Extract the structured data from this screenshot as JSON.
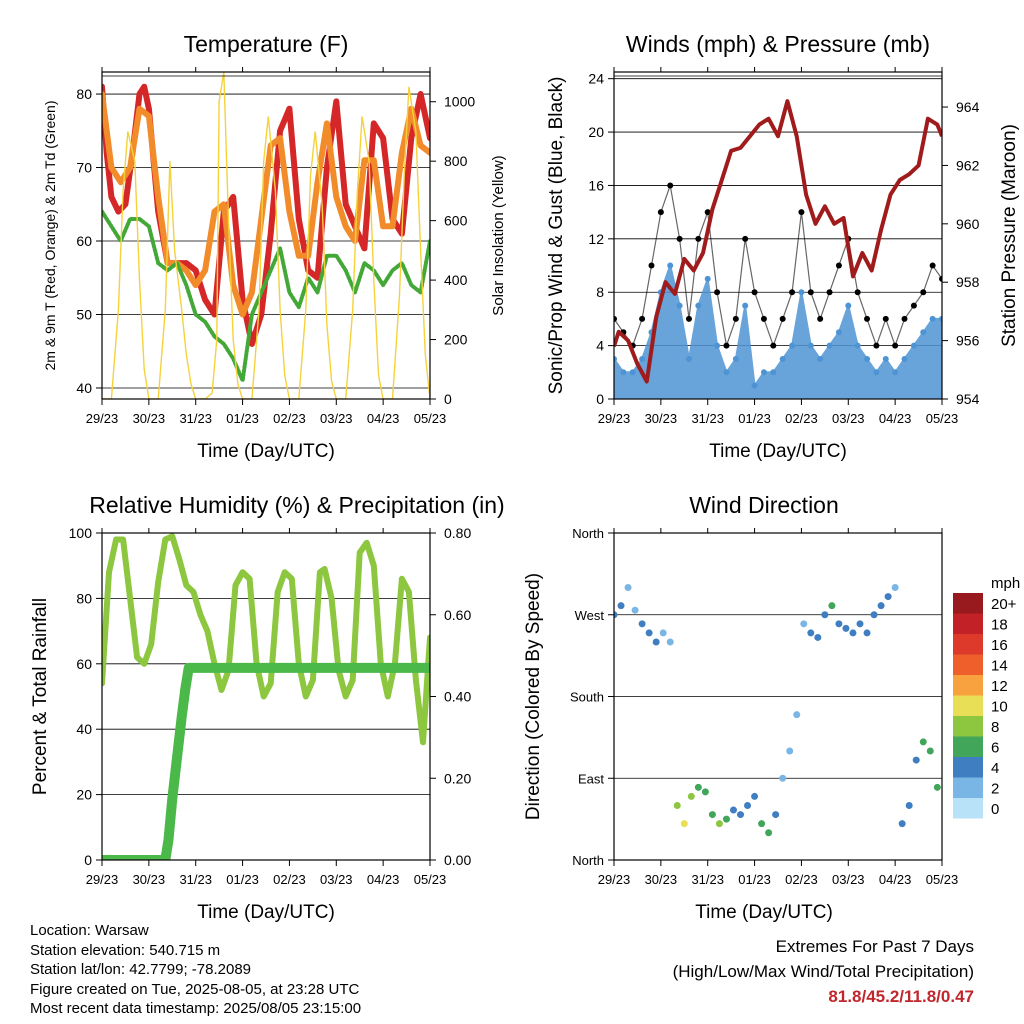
{
  "chart_data": [
    {
      "type": "line",
      "title": "Temperature (F)",
      "xlabel": "Time (Day/UTC)",
      "ylabel": "2m & 9m T (Red, Orange) & 2m Td (Green)",
      "y2label": "Solar Insolation (Yellow)",
      "xticks": [
        "29/23",
        "30/23",
        "31/23",
        "01/23",
        "02/23",
        "03/23",
        "04/23",
        "05/23"
      ],
      "ylim": [
        38.5,
        83
      ],
      "yticks": [
        40,
        50,
        60,
        70,
        80
      ],
      "y2lim": [
        0,
        1100
      ],
      "y2ticks": [
        0,
        200,
        400,
        600,
        800,
        1000
      ],
      "grid": true,
      "series": [
        {
          "name": "2m T",
          "color": "#d62728",
          "x": [
            0,
            0.1,
            0.2,
            0.35,
            0.5,
            0.65,
            0.8,
            0.9,
            1.0,
            1.2,
            1.4,
            1.6,
            1.8,
            2.0,
            2.2,
            2.4,
            2.6,
            2.8,
            3.0,
            3.2,
            3.4,
            3.6,
            3.8,
            4.0,
            4.2,
            4.4,
            4.6,
            4.8,
            5.0,
            5.2,
            5.4,
            5.6,
            5.8,
            6.0,
            6.2,
            6.4,
            6.6,
            6.8,
            7.0
          ],
          "values": [
            81,
            72,
            66,
            64,
            65,
            72,
            80,
            81,
            78,
            64,
            57,
            57,
            57,
            56,
            52,
            50,
            64,
            66,
            52,
            46,
            50,
            61,
            75,
            78,
            63,
            56,
            55,
            70,
            79,
            65,
            62,
            59,
            76,
            74,
            63,
            61,
            74,
            80,
            74
          ]
        },
        {
          "name": "9m T",
          "color": "#f28c2b",
          "x": [
            0,
            0.2,
            0.4,
            0.6,
            0.8,
            1.0,
            1.2,
            1.4,
            1.6,
            1.8,
            2.0,
            2.2,
            2.4,
            2.6,
            2.8,
            3.0,
            3.2,
            3.4,
            3.6,
            3.8,
            4.0,
            4.2,
            4.4,
            4.6,
            4.8,
            5.0,
            5.2,
            5.4,
            5.6,
            5.8,
            6.0,
            6.2,
            6.4,
            6.6,
            6.8,
            7.0
          ],
          "values": [
            80,
            70,
            68,
            70,
            78,
            77,
            66,
            57,
            57,
            56,
            54,
            56,
            64,
            65,
            54,
            50,
            53,
            63,
            73,
            74,
            64,
            58,
            58,
            68,
            76,
            66,
            62,
            60,
            71,
            71,
            62,
            62,
            72,
            78,
            73,
            72
          ]
        },
        {
          "name": "2m Td",
          "color": "#43a838",
          "x": [
            0,
            0.2,
            0.4,
            0.6,
            0.8,
            1.0,
            1.2,
            1.4,
            1.6,
            1.8,
            2.0,
            2.2,
            2.4,
            2.6,
            2.8,
            3.0,
            3.2,
            3.4,
            3.6,
            3.8,
            4.0,
            4.2,
            4.4,
            4.6,
            4.8,
            5.0,
            5.2,
            5.4,
            5.6,
            5.8,
            6.0,
            6.2,
            6.4,
            6.6,
            6.8,
            7.0
          ],
          "values": [
            64,
            62,
            60,
            63,
            63,
            62,
            57,
            56,
            57,
            54,
            50,
            49,
            47,
            46,
            44,
            41,
            50,
            53,
            56,
            59,
            53,
            51,
            55,
            53,
            58,
            58,
            56,
            53,
            57,
            56,
            54,
            56,
            57,
            54,
            53,
            60
          ]
        },
        {
          "name": "Solar Insolation",
          "color": "#f5d23c",
          "axis": "y2",
          "x": [
            0,
            0.2,
            0.35,
            0.45,
            0.55,
            0.7,
            0.8,
            0.9,
            1.0,
            1.2,
            1.35,
            1.45,
            1.55,
            1.7,
            1.8,
            1.9,
            2.0,
            2.2,
            2.35,
            2.45,
            2.5,
            2.6,
            2.7,
            2.8,
            2.9,
            3.0,
            3.2,
            3.35,
            3.45,
            3.55,
            3.7,
            3.8,
            3.9,
            4.0,
            4.2,
            4.35,
            4.45,
            4.55,
            4.7,
            4.8,
            4.9,
            5.0,
            5.2,
            5.35,
            5.45,
            5.55,
            5.7,
            5.8,
            5.9,
            6.0,
            6.2,
            6.35,
            6.45,
            6.55,
            6.7,
            6.8,
            6.9,
            7.0
          ],
          "values": [
            0,
            0,
            300,
            700,
            900,
            800,
            400,
            100,
            0,
            0,
            300,
            800,
            500,
            300,
            150,
            50,
            0,
            0,
            20,
            200,
            1000,
            1100,
            600,
            200,
            50,
            0,
            0,
            300,
            800,
            950,
            700,
            300,
            80,
            0,
            0,
            300,
            750,
            900,
            650,
            250,
            60,
            0,
            0,
            300,
            700,
            950,
            800,
            400,
            80,
            0,
            0,
            350,
            750,
            1050,
            900,
            500,
            150,
            0
          ]
        }
      ]
    },
    {
      "type": "scatter",
      "title": "Winds (mph) & Pressure (mb)",
      "xlabel": "Time (Day/UTC)",
      "ylabel": "Sonic/Prop Wind & Gust (Blue, Black)",
      "y2label": "Station Pressure (Maroon)",
      "xticks": [
        "29/23",
        "30/23",
        "31/23",
        "01/23",
        "02/23",
        "03/23",
        "04/23",
        "05/23"
      ],
      "ylim": [
        0,
        24.5
      ],
      "yticks": [
        0,
        4,
        8,
        12,
        16,
        20,
        24
      ],
      "y2lim": [
        954,
        965.2
      ],
      "y2ticks": [
        954,
        956,
        958,
        960,
        962,
        964
      ],
      "grid": true,
      "series": [
        {
          "name": "Gust",
          "color": "#000000",
          "x": [
            0,
            0.2,
            0.4,
            0.6,
            0.8,
            1.0,
            1.2,
            1.4,
            1.6,
            1.8,
            2.0,
            2.2,
            2.4,
            2.6,
            2.8,
            3.0,
            3.2,
            3.4,
            3.6,
            3.8,
            4.0,
            4.2,
            4.4,
            4.6,
            4.8,
            5.0,
            5.2,
            5.4,
            5.6,
            5.8,
            6.0,
            6.2,
            6.4,
            6.6,
            6.8,
            7.0
          ],
          "values": [
            6,
            5,
            4,
            6,
            10,
            14,
            16,
            12,
            6,
            12,
            14,
            8,
            4,
            6,
            12,
            8,
            6,
            4,
            6,
            8,
            14,
            8,
            6,
            8,
            10,
            12,
            8,
            6,
            4,
            6,
            4,
            6,
            7,
            8,
            10,
            9
          ]
        },
        {
          "name": "Wind",
          "color": "#4e94d4",
          "x": [
            0,
            0.2,
            0.4,
            0.6,
            0.8,
            1.0,
            1.2,
            1.4,
            1.6,
            1.8,
            2.0,
            2.2,
            2.4,
            2.6,
            2.8,
            3.0,
            3.2,
            3.4,
            3.6,
            3.8,
            4.0,
            4.2,
            4.4,
            4.6,
            4.8,
            5.0,
            5.2,
            5.4,
            5.6,
            5.8,
            6.0,
            6.2,
            6.4,
            6.6,
            6.8,
            7.0
          ],
          "values": [
            3,
            2,
            2,
            3,
            5,
            8,
            10,
            7,
            3,
            7,
            9,
            4,
            2,
            3,
            7,
            1,
            2,
            2,
            3,
            4,
            8,
            4,
            3,
            4,
            5,
            7,
            4,
            3,
            2,
            3,
            2,
            3,
            4,
            5,
            6,
            6
          ]
        },
        {
          "name": "Station Pressure",
          "color": "#a01c1c",
          "axis": "y2",
          "x": [
            0,
            0.1,
            0.3,
            0.5,
            0.7,
            0.9,
            1.1,
            1.3,
            1.5,
            1.7,
            1.9,
            2.1,
            2.3,
            2.5,
            2.7,
            2.9,
            3.1,
            3.3,
            3.5,
            3.7,
            3.9,
            4.1,
            4.3,
            4.5,
            4.7,
            4.9,
            5.1,
            5.3,
            5.5,
            5.7,
            5.9,
            6.1,
            6.3,
            6.5,
            6.7,
            6.9,
            7.0
          ],
          "values": [
            955.8,
            956.3,
            956,
            955.2,
            954.6,
            956.8,
            958,
            957.6,
            958.8,
            958.4,
            959,
            960.5,
            961.5,
            962.5,
            962.6,
            963,
            963.4,
            963.6,
            963,
            964.2,
            963,
            961,
            960,
            960.6,
            960,
            960.2,
            958.2,
            959,
            958.4,
            959.8,
            961,
            961.5,
            961.7,
            962,
            963.6,
            963.4,
            963
          ]
        }
      ]
    },
    {
      "type": "line",
      "title": "Relative Humidity (%) & Precipitation (in)",
      "xlabel": "Time (Day/UTC)",
      "ylabel": "Percent & Total Rainfall",
      "xticks": [
        "29/23",
        "30/23",
        "31/23",
        "01/23",
        "02/23",
        "03/23",
        "04/23",
        "05/23"
      ],
      "ylim": [
        0,
        100
      ],
      "yticks": [
        0,
        20,
        40,
        60,
        80,
        100
      ],
      "y2lim": [
        0,
        0.8
      ],
      "y2ticks": [
        "0.00",
        "0.20",
        "0.40",
        "0.60",
        "0.80"
      ],
      "grid": true,
      "series": [
        {
          "name": "Relative Humidity",
          "color": "#8dc63f",
          "x": [
            0,
            0.15,
            0.3,
            0.45,
            0.6,
            0.75,
            0.9,
            1.05,
            1.2,
            1.35,
            1.5,
            1.65,
            1.8,
            1.95,
            2.1,
            2.25,
            2.4,
            2.55,
            2.7,
            2.85,
            3.0,
            3.15,
            3.3,
            3.45,
            3.6,
            3.75,
            3.9,
            4.05,
            4.2,
            4.35,
            4.5,
            4.65,
            4.75,
            4.9,
            5.05,
            5.2,
            5.35,
            5.5,
            5.65,
            5.8,
            5.95,
            6.1,
            6.25,
            6.4,
            6.55,
            6.7,
            6.85,
            7.0
          ],
          "values": [
            54,
            88,
            98,
            98,
            80,
            62,
            60,
            66,
            85,
            98,
            99,
            92,
            84,
            82,
            75,
            70,
            60,
            52,
            58,
            84,
            88,
            86,
            60,
            50,
            54,
            82,
            88,
            86,
            60,
            50,
            55,
            88,
            89,
            80,
            58,
            50,
            55,
            94,
            97,
            90,
            60,
            50,
            60,
            86,
            82,
            55,
            36,
            68
          ]
        },
        {
          "name": "Total Precipitation",
          "color": "#4bb84a",
          "axis": "y2",
          "x": [
            0,
            1.0,
            1.35,
            1.42,
            1.5,
            1.6,
            1.7,
            1.78,
            1.85,
            2.0,
            3.0,
            4.0,
            5.0,
            6.0,
            7.0
          ],
          "values": [
            0,
            0,
            0,
            0.05,
            0.15,
            0.25,
            0.35,
            0.42,
            0.47,
            0.47,
            0.47,
            0.47,
            0.47,
            0.47,
            0.47
          ]
        }
      ]
    },
    {
      "type": "scatter",
      "title": "Wind Direction",
      "xlabel": "Time (Day/UTC)",
      "ylabel": "Direction (Colored By Speed)",
      "xticks": [
        "29/23",
        "30/23",
        "31/23",
        "01/23",
        "02/23",
        "03/23",
        "04/23",
        "05/23"
      ],
      "yticks": [
        "North",
        "East",
        "South",
        "West",
        "North"
      ],
      "ylim": [
        0,
        360
      ],
      "grid": true,
      "legend": {
        "title": "mph",
        "labels": [
          "20+",
          "18",
          "16",
          "14",
          "12",
          "10",
          "8",
          "6",
          "4",
          "2",
          "0"
        ],
        "colors": [
          "#981a1f",
          "#c22127",
          "#dd3a2c",
          "#ef5f2b",
          "#f7a23f",
          "#e8df56",
          "#8dc63f",
          "#41a55a",
          "#3f7fc1",
          "#7ab6e5",
          "#b7e2f7"
        ]
      },
      "series": [
        {
          "name": "Direction",
          "x": [
            0,
            0.15,
            0.3,
            0.45,
            0.6,
            0.75,
            0.9,
            1.05,
            1.2,
            1.35,
            1.5,
            1.65,
            1.8,
            1.95,
            2.1,
            2.25,
            2.4,
            2.55,
            2.7,
            2.85,
            3.0,
            3.15,
            3.3,
            3.45,
            3.6,
            3.75,
            3.9,
            4.05,
            4.2,
            4.35,
            4.5,
            4.65,
            4.8,
            4.95,
            5.1,
            5.25,
            5.4,
            5.55,
            5.7,
            5.85,
            6.0,
            6.15,
            6.3,
            6.45,
            6.6,
            6.75,
            6.9
          ],
          "values": [
            270,
            280,
            300,
            275,
            260,
            250,
            240,
            250,
            240,
            60,
            40,
            70,
            80,
            75,
            50,
            40,
            45,
            55,
            50,
            60,
            70,
            40,
            30,
            50,
            90,
            120,
            160,
            260,
            250,
            245,
            270,
            280,
            260,
            255,
            250,
            260,
            250,
            270,
            280,
            290,
            300,
            40,
            60,
            110,
            130,
            120,
            80
          ],
          "speeds": [
            3,
            3,
            2,
            2,
            3,
            4,
            3,
            2,
            2,
            7,
            10,
            7,
            6,
            5,
            5,
            8,
            6,
            4,
            3,
            3,
            4,
            6,
            6,
            4,
            1,
            1,
            1,
            2,
            3,
            3,
            4,
            5,
            4,
            4,
            3,
            3,
            4,
            4,
            4,
            3,
            2,
            4,
            3,
            4,
            5,
            6,
            5
          ]
        }
      ]
    }
  ],
  "info": {
    "location": "Location: Warsaw",
    "elevation": "Station elevation: 540.715 m",
    "latlon": "Station lat/lon: 42.7799; -78.2089",
    "created": "Figure created on Tue, 2025-08-05, at 23:28 UTC",
    "latest": "Most recent data timestamp: 2025/08/05 23:15:00"
  },
  "extremes": {
    "line1": "Extremes For Past 7 Days",
    "line2": "(High/Low/Max Wind/Total Precipitation)",
    "value": "81.8/45.2/11.8/0.47"
  }
}
